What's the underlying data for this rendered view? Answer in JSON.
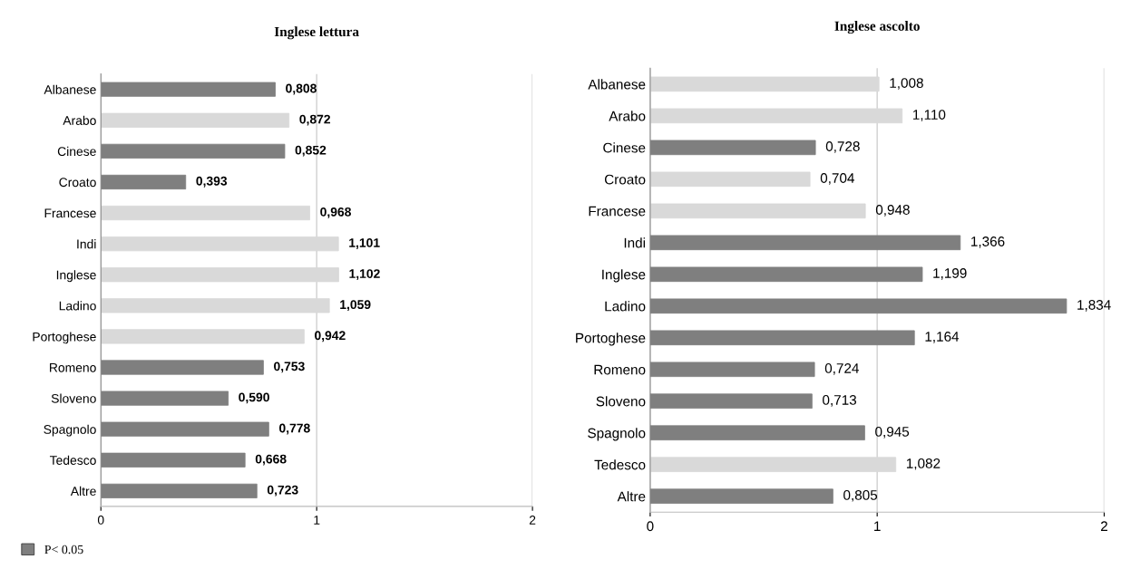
{
  "chart_data": [
    {
      "type": "bar",
      "orientation": "horizontal",
      "title": "Inglese lettura",
      "categories": [
        "Albanese",
        "Arabo",
        "Cinese",
        "Croato",
        "Francese",
        "Indi",
        "Inglese",
        "Ladino",
        "Portoghese",
        "Romeno",
        "Sloveno",
        "Spagnolo",
        "Tedesco",
        "Altre"
      ],
      "series": [
        {
          "name": "P< 0.05",
          "color": "#7f7f7f",
          "values": [
            0.808,
            0.872,
            0.852,
            0.393,
            0.968,
            1.101,
            1.102,
            1.059,
            0.942,
            0.753,
            0.59,
            0.778,
            0.668,
            0.723
          ],
          "colors": [
            "#7f7f7f",
            "#d9d9d9",
            "#7f7f7f",
            "#7f7f7f",
            "#d9d9d9",
            "#d9d9d9",
            "#d9d9d9",
            "#d9d9d9",
            "#d9d9d9",
            "#7f7f7f",
            "#7f7f7f",
            "#7f7f7f",
            "#7f7f7f",
            "#7f7f7f"
          ],
          "value_labels": [
            "0,808",
            "0,872",
            "0,852",
            "0,393",
            "0,968",
            "1,101",
            "1,102",
            "1,059",
            "0,942",
            "0,753",
            "0,590",
            "0,778",
            "0,668",
            "0,723"
          ]
        }
      ],
      "xlim": [
        0,
        2
      ],
      "xticks": [
        0,
        1,
        2
      ],
      "grid": "x",
      "legend": "bottom left"
    },
    {
      "type": "bar",
      "orientation": "horizontal",
      "title": "Inglese ascolto",
      "categories": [
        "Albanese",
        "Arabo",
        "Cinese",
        "Croato",
        "Francese",
        "Indi",
        "Inglese",
        "Ladino",
        "Portoghese",
        "Romeno",
        "Sloveno",
        "Spagnolo",
        "Tedesco",
        "Altre"
      ],
      "series": [
        {
          "color": "#7f7f7f",
          "values": [
            1.008,
            1.11,
            0.728,
            0.704,
            0.948,
            1.366,
            1.199,
            1.834,
            1.164,
            0.724,
            0.713,
            0.945,
            1.082,
            0.805
          ],
          "colors": [
            "#d9d9d9",
            "#d9d9d9",
            "#7f7f7f",
            "#d9d9d9",
            "#d9d9d9",
            "#7f7f7f",
            "#7f7f7f",
            "#7f7f7f",
            "#7f7f7f",
            "#7f7f7f",
            "#7f7f7f",
            "#7f7f7f",
            "#d9d9d9",
            "#7f7f7f"
          ],
          "value_labels": [
            "1,008",
            "1,110",
            "0,728",
            "0,704",
            "0,948",
            "1,366",
            "1,199",
            "1,834",
            "1,164",
            "0,724",
            "0,713",
            "0,945",
            "1,082",
            "0,805"
          ]
        }
      ],
      "xlim": [
        0,
        2
      ],
      "xticks": [
        0,
        1,
        2
      ],
      "grid": "x"
    }
  ]
}
